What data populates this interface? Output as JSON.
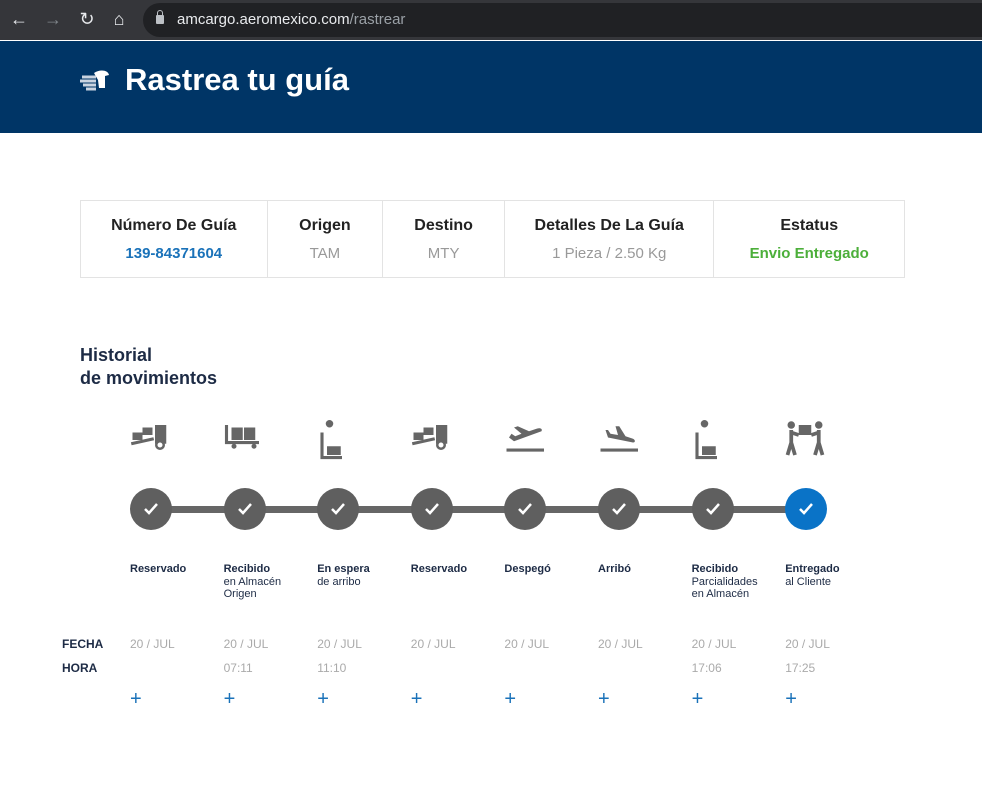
{
  "browser": {
    "url_host": "amcargo.aeromexico.com",
    "url_path": "/rastrear"
  },
  "header": {
    "title": "Rastrea tu guía"
  },
  "summary": [
    {
      "label": "Número De Guía",
      "value": "139-84371604",
      "color": "#1a72b9"
    },
    {
      "label": "Origen",
      "value": "TAM"
    },
    {
      "label": "Destino",
      "value": "MTY"
    },
    {
      "label": "Detalles De La Guía",
      "value": "1 Pieza / 2.50 Kg"
    },
    {
      "label": "Estatus",
      "value": "Envio Entregado",
      "color": "#4caf3a"
    }
  ],
  "history": {
    "title_line1": "Historial",
    "title_line2": "de movimientos",
    "fecha_label": "FECHA",
    "hora_label": "HORA",
    "expand_label": "+"
  },
  "steps": [
    {
      "icon": "forklift-icon",
      "title": "Reservado",
      "sub": "",
      "date": "20 / JUL",
      "time": ""
    },
    {
      "icon": "cart-boxes-icon",
      "title": "Recibido",
      "sub": "en Almacén Origen",
      "date": "20 / JUL",
      "time": "07:11"
    },
    {
      "icon": "hand-truck-wait-icon",
      "title": "En espera",
      "sub": "de arribo",
      "date": "20 / JUL",
      "time": "11:10"
    },
    {
      "icon": "forklift-icon",
      "title": "Reservado",
      "sub": "",
      "date": "20 / JUL",
      "time": ""
    },
    {
      "icon": "plane-takeoff-icon",
      "title": "Despegó",
      "sub": "",
      "date": "20 / JUL",
      "time": ""
    },
    {
      "icon": "plane-landing-icon",
      "title": "Arribó",
      "sub": "",
      "date": "20 / JUL",
      "time": ""
    },
    {
      "icon": "hand-truck-wait-icon",
      "title": "Recibido",
      "sub": "Parcialidades en Almacén",
      "date": "20 / JUL",
      "time": "17:06"
    },
    {
      "icon": "people-delivery-icon",
      "title": "Entregado",
      "sub": "al Cliente",
      "date": "20 / JUL",
      "time": "17:25",
      "active": true
    }
  ],
  "colors": {
    "header": "#003566",
    "active": "#0a73c7",
    "done": "#5f5f5f"
  }
}
